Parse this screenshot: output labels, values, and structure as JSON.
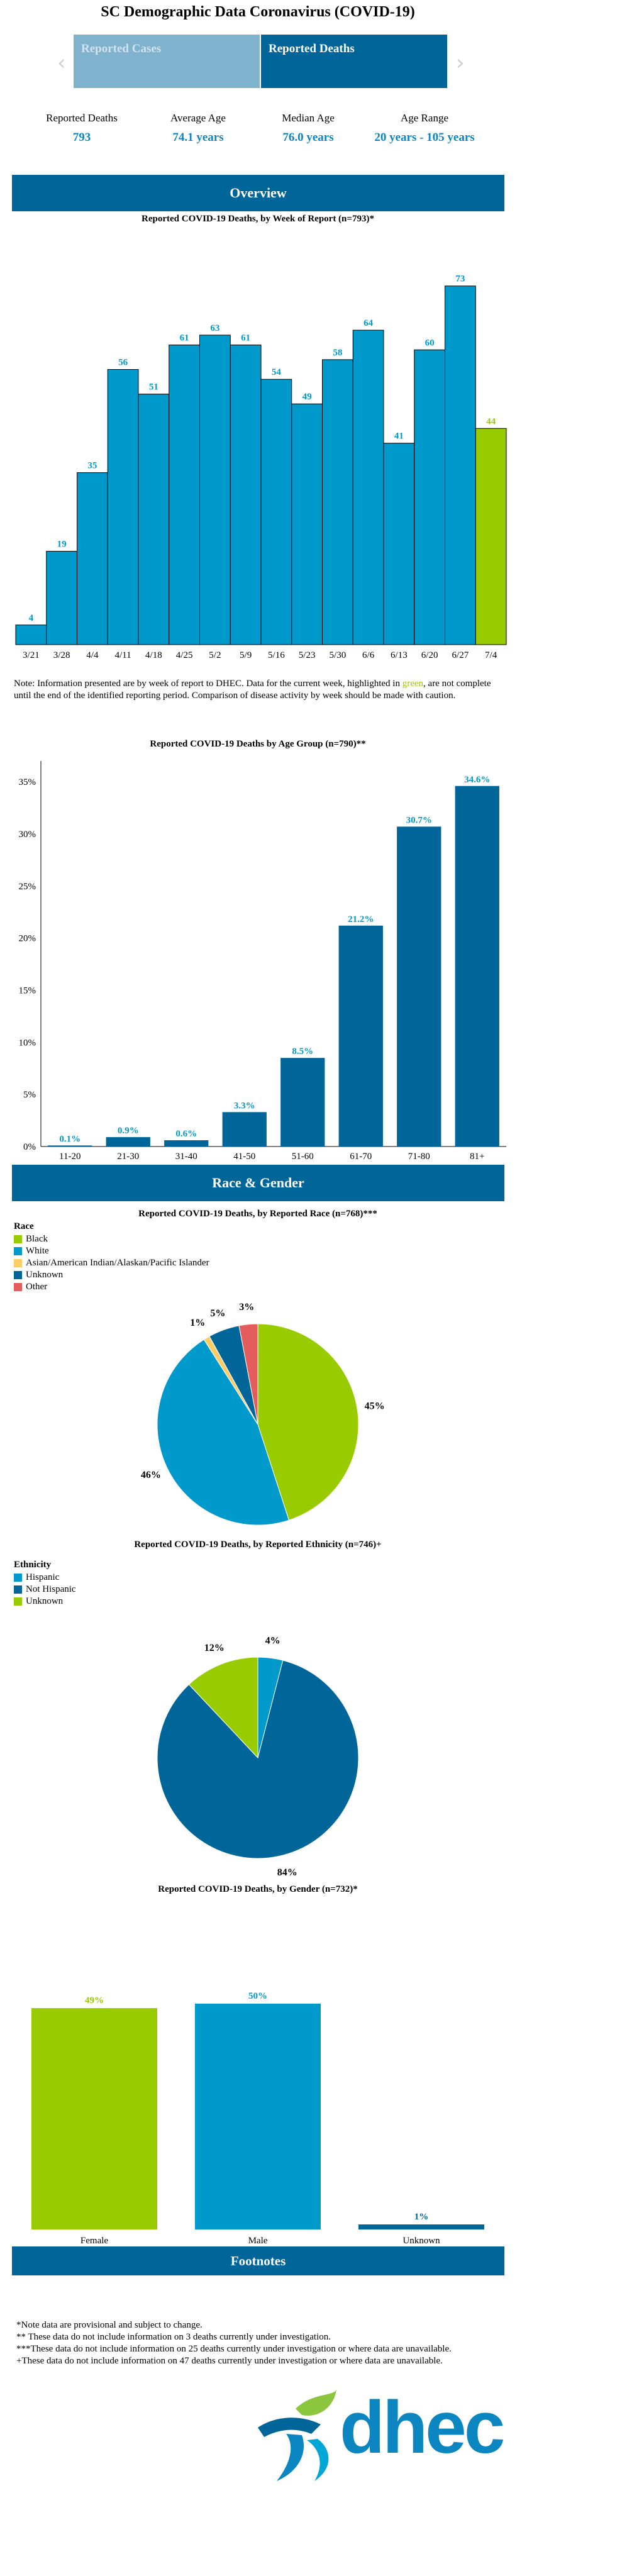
{
  "header": {
    "title": "SC Demographic Data Coronavirus (COVID-19)"
  },
  "tabs": [
    {
      "label": "Reported Cases",
      "active": false
    },
    {
      "label": "Reported Deaths",
      "active": true
    }
  ],
  "nav": {
    "prev": "‹",
    "next": "›"
  },
  "stats": [
    {
      "label": "Reported Deaths",
      "value": "793"
    },
    {
      "label": "Average Age",
      "value": "74.1 years"
    },
    {
      "label": "Median Age",
      "value": "76.0 years"
    },
    {
      "label": "Age Range",
      "value": "20 years - 105 years"
    }
  ],
  "sections": {
    "overview": "Overview",
    "race_gender": "Race & Gender",
    "footnotes": "Footnotes"
  },
  "colors": {
    "primary": "#00669a",
    "bar": "#0099cc",
    "dark": "#00669a",
    "green": "#99cc00",
    "yellow": "#ffcc66",
    "red": "#e35d5d"
  },
  "week_note": {
    "before": "Note: Information presented are by week of report to DHEC. Data for the current week, highlighted in ",
    "highlight": "green",
    "after": ", are not complete until the end of the identified reporting period. Comparison of disease activity by week should be made with caution."
  },
  "chart_data": [
    {
      "type": "bar",
      "title": "Reported COVID-19 Deaths, by Week of Report (n=793)*",
      "categories": [
        "3/21",
        "3/28",
        "4/4",
        "4/11",
        "4/18",
        "4/25",
        "5/2",
        "5/9",
        "5/16",
        "5/23",
        "5/30",
        "6/6",
        "6/13",
        "6/20",
        "6/27",
        "7/4"
      ],
      "values": [
        4,
        19,
        35,
        56,
        51,
        61,
        63,
        61,
        54,
        49,
        58,
        64,
        41,
        60,
        73,
        44
      ],
      "highlight_last": true,
      "ylim": [
        0,
        80
      ]
    },
    {
      "type": "bar",
      "title": "Reported COVID-19 Deaths by Age Group (n=790)**",
      "categories": [
        "11-20",
        "21-30",
        "31-40",
        "41-50",
        "51-60",
        "61-70",
        "71-80",
        "81+"
      ],
      "values": [
        0.1,
        0.9,
        0.6,
        3.3,
        8.5,
        21.2,
        30.7,
        34.6
      ],
      "labels": [
        "0.1%",
        "0.9%",
        "0.6%",
        "3.3%",
        "8.5%",
        "21.2%",
        "30.7%",
        "34.6%"
      ],
      "yticks": [
        "0%",
        "5%",
        "10%",
        "15%",
        "20%",
        "25%",
        "30%",
        "35%"
      ],
      "ylim": [
        0,
        37
      ]
    },
    {
      "type": "pie",
      "title": "Reported COVID-19 Deaths, by Reported Race (n=768)***",
      "legend_title": "Race",
      "slices": [
        {
          "name": "Black",
          "value": 45,
          "label": "45%",
          "color": "#99cc00"
        },
        {
          "name": "White",
          "value": 46,
          "label": "46%",
          "color": "#0099cc"
        },
        {
          "name": "Asian/American Indian/Alaskan/Pacific Islander",
          "value": 1,
          "label": "1%",
          "color": "#ffcc66"
        },
        {
          "name": "Unknown",
          "value": 5,
          "label": "5%",
          "color": "#00669a"
        },
        {
          "name": "Other",
          "value": 3,
          "label": "3%",
          "color": "#e35d5d"
        }
      ]
    },
    {
      "type": "pie",
      "title": "Reported COVID-19 Deaths, by Reported Ethnicity (n=746)+",
      "legend_title": "Ethnicity",
      "slices": [
        {
          "name": "Hispanic",
          "value": 4,
          "label": "4%",
          "color": "#0099cc"
        },
        {
          "name": "Not Hispanic",
          "value": 84,
          "label": "84%",
          "color": "#00669a"
        },
        {
          "name": "Unknown",
          "value": 12,
          "label": "12%",
          "color": "#99cc00"
        }
      ]
    },
    {
      "type": "bar",
      "title": "Reported COVID-19 Deaths, by Gender (n=732)*",
      "categories": [
        "Female",
        "Male",
        "Unknown"
      ],
      "values": [
        49,
        50,
        1
      ],
      "labels": [
        "49%",
        "50%",
        "1%"
      ],
      "colors": [
        "#99cc00",
        "#0099cc",
        "#00669a"
      ],
      "ylim": [
        0,
        55
      ]
    }
  ],
  "footnotes": [
    "*Note data are provisional and subject to change.",
    "** These data do not include information on 3 deaths currently under investigation.",
    "***These data do not include information on 25 deaths currently under investigation or where data are unavailable.",
    "+These data do not include information on 47 deaths currently under investigation or where data are unavailable."
  ],
  "logo": {
    "text": "dhec"
  }
}
